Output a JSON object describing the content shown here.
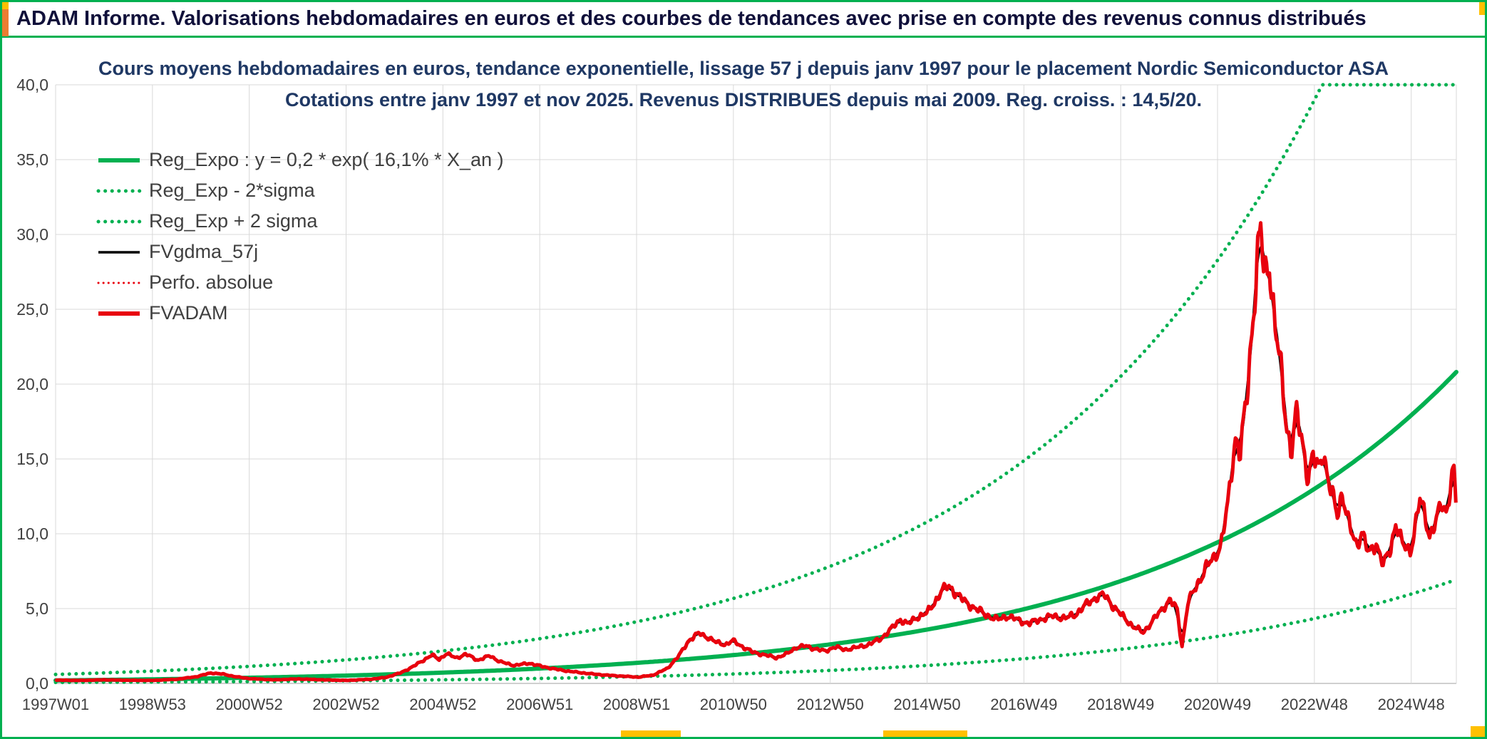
{
  "header": {
    "title": "ADAM Informe. Valorisations hebdomadaires en euros et des courbes de tendances avec prise en compte des revenus connus distribués"
  },
  "colors": {
    "green": "#00B050",
    "red": "#E8000D",
    "black": "#000000",
    "title_navy": "#1F3864",
    "grid": "#D9D9D9",
    "axis_zero": "#9F9F9F",
    "axis_text": "#404040",
    "accent_yellow": "#FFC000",
    "accent_orange": "#ED7D31"
  },
  "chart_data": {
    "type": "line",
    "title_line1": "Cours moyens hebdomadaires en euros, tendance exponentielle, lissage 57 j depuis janv 1997 pour le placement Nordic Semiconductor ASA",
    "title_line2": "Cotations entre janv 1997 et nov 2025. Revenus DISTRIBUES depuis mai 2009. Reg. croiss. : 14,5/20.",
    "ylim": [
      0,
      40
    ],
    "ytick_step": 5,
    "ytick_labels": [
      "0,0",
      "5,0",
      "10,0",
      "15,0",
      "20,0",
      "25,0",
      "30,0",
      "35,0",
      "40,0"
    ],
    "x_start_year": 1997.0,
    "x_end_year": 2025.85,
    "xtick_step_years": 1.9943,
    "xtick_labels": [
      "1997W01",
      "1998W53",
      "2000W52",
      "2002W52",
      "2004W52",
      "2006W51",
      "2008W51",
      "2010W50",
      "2012W50",
      "2014W50",
      "2016W49",
      "2018W49",
      "2020W49",
      "2022W48",
      "2024W48"
    ],
    "grid": "on",
    "legend_position": "top-left-inside",
    "regression": {
      "formula_label": "Reg_Expo : y = 0,2 * exp( 16,1% *  X_an )",
      "a": 0.2,
      "rate_pct": 16.1,
      "band_factor": 3.0,
      "clip_max": 40
    },
    "legend": [
      {
        "label": "Reg_Expo : y = 0,2 * exp( 16,1% *  X_an )",
        "color": "#00B050",
        "style": "solid-thick"
      },
      {
        "label": "Reg_Exp - 2*sigma",
        "color": "#00B050",
        "style": "dotted"
      },
      {
        "label": "Reg_Exp + 2 sigma",
        "color": "#00B050",
        "style": "dotted"
      },
      {
        "label": "FVgdma_57j",
        "color": "#000000",
        "style": "solid"
      },
      {
        "label": "Perfo. absolue",
        "color": "#E8000D",
        "style": "dotted-thin"
      },
      {
        "label": "FVADAM",
        "color": "#E8000D",
        "style": "solid-thick"
      }
    ],
    "smoothed_series": {
      "name": "FVgdma_57j",
      "window_days": 57,
      "source": "FVADAM"
    },
    "series": [
      {
        "name": "FVADAM",
        "unit": "EUR",
        "points": [
          [
            1997.0,
            0.22
          ],
          [
            1997.5,
            0.2
          ],
          [
            1998.0,
            0.24
          ],
          [
            1998.5,
            0.21
          ],
          [
            1999.0,
            0.2
          ],
          [
            1999.5,
            0.28
          ],
          [
            1999.9,
            0.45
          ],
          [
            2000.2,
            0.7
          ],
          [
            2000.45,
            0.62
          ],
          [
            2000.7,
            0.45
          ],
          [
            2001.0,
            0.32
          ],
          [
            2001.5,
            0.24
          ],
          [
            2002.0,
            0.3
          ],
          [
            2002.5,
            0.24
          ],
          [
            2003.0,
            0.2
          ],
          [
            2003.5,
            0.28
          ],
          [
            2003.8,
            0.4
          ],
          [
            2004.1,
            0.7
          ],
          [
            2004.35,
            1.1
          ],
          [
            2004.55,
            1.5
          ],
          [
            2004.75,
            1.9
          ],
          [
            2004.9,
            1.6
          ],
          [
            2005.05,
            2.0
          ],
          [
            2005.25,
            1.7
          ],
          [
            2005.45,
            1.95
          ],
          [
            2005.7,
            1.55
          ],
          [
            2005.95,
            1.85
          ],
          [
            2006.15,
            1.45
          ],
          [
            2006.45,
            1.2
          ],
          [
            2006.75,
            1.35
          ],
          [
            2007.0,
            1.15
          ],
          [
            2007.3,
            0.95
          ],
          [
            2007.6,
            0.8
          ],
          [
            2008.0,
            0.65
          ],
          [
            2008.35,
            0.55
          ],
          [
            2008.7,
            0.48
          ],
          [
            2009.0,
            0.42
          ],
          [
            2009.3,
            0.55
          ],
          [
            2009.6,
            1.0
          ],
          [
            2009.85,
            1.9
          ],
          [
            2010.05,
            2.9
          ],
          [
            2010.25,
            3.35
          ],
          [
            2010.45,
            3.05
          ],
          [
            2010.6,
            2.75
          ],
          [
            2010.8,
            2.6
          ],
          [
            2010.95,
            2.85
          ],
          [
            2011.15,
            2.45
          ],
          [
            2011.35,
            2.1
          ],
          [
            2011.6,
            1.9
          ],
          [
            2011.85,
            1.72
          ],
          [
            2012.05,
            1.95
          ],
          [
            2012.25,
            2.4
          ],
          [
            2012.45,
            2.5
          ],
          [
            2012.65,
            2.3
          ],
          [
            2012.85,
            2.15
          ],
          [
            2013.05,
            2.45
          ],
          [
            2013.25,
            2.25
          ],
          [
            2013.5,
            2.4
          ],
          [
            2013.75,
            2.6
          ],
          [
            2014.0,
            3.0
          ],
          [
            2014.2,
            3.6
          ],
          [
            2014.4,
            4.3
          ],
          [
            2014.55,
            3.95
          ],
          [
            2014.75,
            4.45
          ],
          [
            2014.95,
            4.7
          ],
          [
            2015.1,
            5.4
          ],
          [
            2015.25,
            6.2
          ],
          [
            2015.4,
            6.5
          ],
          [
            2015.55,
            6.0
          ],
          [
            2015.75,
            5.4
          ],
          [
            2015.95,
            5.0
          ],
          [
            2016.15,
            4.6
          ],
          [
            2016.4,
            4.25
          ],
          [
            2016.6,
            4.5
          ],
          [
            2016.85,
            4.2
          ],
          [
            2017.05,
            4.0
          ],
          [
            2017.3,
            4.3
          ],
          [
            2017.55,
            4.5
          ],
          [
            2017.8,
            4.35
          ],
          [
            2018.0,
            4.6
          ],
          [
            2018.2,
            5.2
          ],
          [
            2018.45,
            5.8
          ],
          [
            2018.6,
            5.9
          ],
          [
            2018.8,
            5.1
          ],
          [
            2019.0,
            4.4
          ],
          [
            2019.2,
            3.8
          ],
          [
            2019.4,
            3.4
          ],
          [
            2019.6,
            4.2
          ],
          [
            2019.8,
            5.0
          ],
          [
            2019.95,
            5.6
          ],
          [
            2020.1,
            4.9
          ],
          [
            2020.2,
            2.45
          ],
          [
            2020.32,
            5.4
          ],
          [
            2020.5,
            6.5
          ],
          [
            2020.7,
            7.8
          ],
          [
            2020.85,
            8.3
          ],
          [
            2021.0,
            9.3
          ],
          [
            2021.15,
            12.0
          ],
          [
            2021.3,
            16.5
          ],
          [
            2021.4,
            15.5
          ],
          [
            2021.55,
            19.5
          ],
          [
            2021.65,
            24.0
          ],
          [
            2021.75,
            28.5
          ],
          [
            2021.82,
            30.4
          ],
          [
            2021.9,
            26.8
          ],
          [
            2022.0,
            28.3
          ],
          [
            2022.1,
            24.5
          ],
          [
            2022.25,
            20.5
          ],
          [
            2022.35,
            17.3
          ],
          [
            2022.45,
            15.6
          ],
          [
            2022.55,
            18.0
          ],
          [
            2022.65,
            16.6
          ],
          [
            2022.8,
            13.8
          ],
          [
            2022.9,
            15.2
          ],
          [
            2023.0,
            14.2
          ],
          [
            2023.1,
            15.6
          ],
          [
            2023.25,
            13.0
          ],
          [
            2023.4,
            11.3
          ],
          [
            2023.5,
            12.8
          ],
          [
            2023.65,
            10.4
          ],
          [
            2023.8,
            9.2
          ],
          [
            2023.9,
            10.2
          ],
          [
            2024.05,
            8.6
          ],
          [
            2024.2,
            9.4
          ],
          [
            2024.35,
            7.9
          ],
          [
            2024.5,
            9.0
          ],
          [
            2024.6,
            10.8
          ],
          [
            2024.75,
            9.2
          ],
          [
            2024.9,
            8.8
          ],
          [
            2025.0,
            10.5
          ],
          [
            2025.1,
            12.3
          ],
          [
            2025.2,
            11.2
          ],
          [
            2025.3,
            9.9
          ],
          [
            2025.45,
            11.0
          ],
          [
            2025.55,
            12.0
          ],
          [
            2025.65,
            11.4
          ],
          [
            2025.75,
            13.8
          ],
          [
            2025.8,
            14.2
          ],
          [
            2025.85,
            11.3
          ]
        ]
      }
    ]
  }
}
